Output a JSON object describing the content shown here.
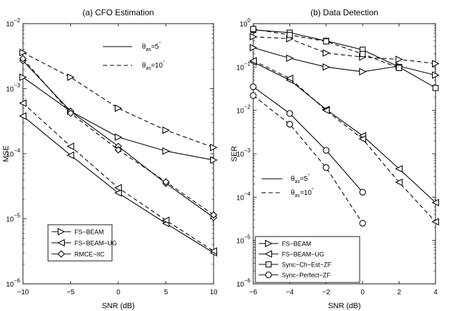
{
  "chart_data": [
    {
      "type": "line",
      "title": "(a)  CFO Estimation",
      "xlabel": "SNR (dB)",
      "ylabel": "MSE",
      "xlim": [
        -10,
        10
      ],
      "ylim": [
        1e-06,
        0.01
      ],
      "yscale": "log",
      "xticks": [
        -10,
        -5,
        0,
        5,
        10
      ],
      "xtick_labels": [
        "−10",
        "−5",
        "0",
        "5",
        "10"
      ],
      "yticks": [
        1e-06,
        1e-05,
        0.0001,
        0.001,
        0.01
      ],
      "ytick_labels": [
        [
          "10",
          "−6"
        ],
        [
          "10",
          "−5"
        ],
        [
          "10",
          "−4"
        ],
        [
          "10",
          "−3"
        ],
        [
          "10",
          "−2"
        ]
      ],
      "legend_bottom": {
        "placement": "bottom-left",
        "entries": [
          {
            "label": "FS−BEAM",
            "marker": "triangle-right"
          },
          {
            "label": "FS−BEAM−UG",
            "marker": "triangle-left"
          },
          {
            "label": "RMCE−IIC",
            "marker": "diamond"
          }
        ]
      },
      "legend_style": {
        "placement": "top-right",
        "entries": [
          {
            "base": "θ",
            "sub": "as",
            "rest": "=5",
            "sup": "°",
            "dash": "solid"
          },
          {
            "base": "θ",
            "sub": "as",
            "rest": "=10",
            "sup": "°",
            "dash": "dashed"
          }
        ]
      },
      "series": [
        {
          "name": "FS−BEAM",
          "marker": "triangle-right",
          "dash": "solid",
          "x": [
            -10,
            -5,
            0,
            5,
            10
          ],
          "y": [
            0.0015,
            0.00045,
            0.00018,
            0.00011,
            8e-05
          ]
        },
        {
          "name": "FS−BEAM",
          "marker": "triangle-right",
          "dash": "dashed",
          "x": [
            -10,
            -5,
            0,
            5,
            10
          ],
          "y": [
            0.0036,
            0.0015,
            0.0005,
            0.00023,
            0.000125
          ]
        },
        {
          "name": "FS−BEAM−UG",
          "marker": "triangle-left",
          "dash": "solid",
          "x": [
            -10,
            -5,
            0,
            5,
            10
          ],
          "y": [
            0.00038,
            9.5e-05,
            2.5e-05,
            8.5e-06,
            3e-06
          ]
        },
        {
          "name": "FS−BEAM−UG",
          "marker": "triangle-left",
          "dash": "dashed",
          "x": [
            -10,
            -5,
            0,
            5,
            10
          ],
          "y": [
            0.0006,
            0.00013,
            3e-05,
            9.5e-06,
            3.2e-06
          ]
        },
        {
          "name": "RMCE−IIC",
          "marker": "diamond",
          "dash": "solid",
          "x": [
            -10,
            -5,
            0,
            5,
            10
          ],
          "y": [
            0.0027,
            0.00045,
            0.00013,
            3.5e-05,
            1.05e-05
          ]
        },
        {
          "name": "RMCE−IIC",
          "marker": "diamond",
          "dash": "dashed",
          "x": [
            -10,
            -5,
            0,
            5,
            10
          ],
          "y": [
            0.0029,
            0.00042,
            0.000115,
            3.7e-05,
            1.15e-05
          ]
        }
      ]
    },
    {
      "type": "line",
      "title": "(b)  Data Detection",
      "xlabel": "SNR (dB)",
      "ylabel": "SER",
      "xlim": [
        -6,
        4
      ],
      "ylim": [
        1e-06,
        1
      ],
      "yscale": "log",
      "xticks": [
        -6,
        -4,
        -2,
        0,
        2,
        4
      ],
      "xtick_labels": [
        "−6",
        "−4",
        "−2",
        "0",
        "2",
        "4"
      ],
      "yticks": [
        1e-06,
        1e-05,
        0.0001,
        0.001,
        0.01,
        0.1,
        1
      ],
      "ytick_labels": [
        [
          "10",
          "−6"
        ],
        [
          "10",
          "−5"
        ],
        [
          "10",
          "−4"
        ],
        [
          "10",
          "−3"
        ],
        [
          "10",
          "−2"
        ],
        [
          "10",
          "−1"
        ],
        [
          "10",
          "0"
        ]
      ],
      "legend_bottom": {
        "placement": "bottom-left",
        "entries": [
          {
            "label": "FS−BEAM",
            "marker": "triangle-right"
          },
          {
            "label": "FS−BEAM−UG",
            "marker": "triangle-left"
          },
          {
            "label": "Sync−Ch−Est−ZF",
            "marker": "square"
          },
          {
            "label": "Sync−Perfect−ZF",
            "marker": "circle"
          }
        ]
      },
      "legend_style": {
        "placement": "lower-left",
        "entries": [
          {
            "base": "θ",
            "sub": "as",
            "rest": "=5",
            "sup": "°",
            "dash": "solid"
          },
          {
            "base": "θ",
            "sub": "as",
            "rest": "=10",
            "sup": "°",
            "dash": "dashed"
          }
        ]
      },
      "series": [
        {
          "name": "FS−BEAM",
          "marker": "triangle-right",
          "dash": "solid",
          "x": [
            -6,
            -4,
            -2,
            0,
            2,
            4
          ],
          "y": [
            0.28,
            0.16,
            0.1,
            0.078,
            0.105,
            0.065
          ]
        },
        {
          "name": "FS−BEAM",
          "marker": "triangle-right",
          "dash": "dashed",
          "x": [
            -6,
            -4,
            -2,
            0,
            2,
            4
          ],
          "y": [
            0.5,
            0.45,
            0.21,
            0.17,
            0.15,
            0.12
          ]
        },
        {
          "name": "FS−BEAM−UG",
          "marker": "triangle-left",
          "dash": "solid",
          "x": [
            -6,
            -4,
            -2,
            0,
            2,
            4
          ],
          "y": [
            0.13,
            0.05,
            0.0105,
            0.0026,
            0.00045,
            7.5e-05
          ]
        },
        {
          "name": "FS−BEAM−UG",
          "marker": "triangle-left",
          "dash": "dashed",
          "x": [
            -6,
            -4,
            -2,
            0,
            2,
            4
          ],
          "y": [
            0.14,
            0.055,
            0.01,
            0.0022,
            0.00022,
            2.7e-05
          ]
        },
        {
          "name": "Sync−Ch−Est−ZF",
          "marker": "square",
          "dash": "solid",
          "x": [
            -6,
            -4,
            -2,
            0,
            2,
            4
          ],
          "y": [
            0.72,
            0.62,
            0.4,
            0.25,
            0.1,
            0.033
          ]
        },
        {
          "name": "Sync−Ch−Est−ZF",
          "marker": "square",
          "dash": "dashed",
          "x": [
            -6,
            -4,
            -2,
            0,
            2
          ],
          "y": [
            0.75,
            0.55,
            0.39,
            0.2,
            0.095
          ]
        },
        {
          "name": "Sync−Perfect−ZF",
          "marker": "circle",
          "dash": "solid",
          "x": [
            -6,
            -4,
            -2,
            0
          ],
          "y": [
            0.035,
            0.0085,
            0.0012,
            0.00013
          ]
        },
        {
          "name": "Sync−Perfect−ZF",
          "marker": "circle",
          "dash": "dashed",
          "x": [
            -6,
            -4,
            -2,
            0
          ],
          "y": [
            0.022,
            0.0048,
            0.00048,
            2.5e-05
          ]
        }
      ]
    }
  ]
}
